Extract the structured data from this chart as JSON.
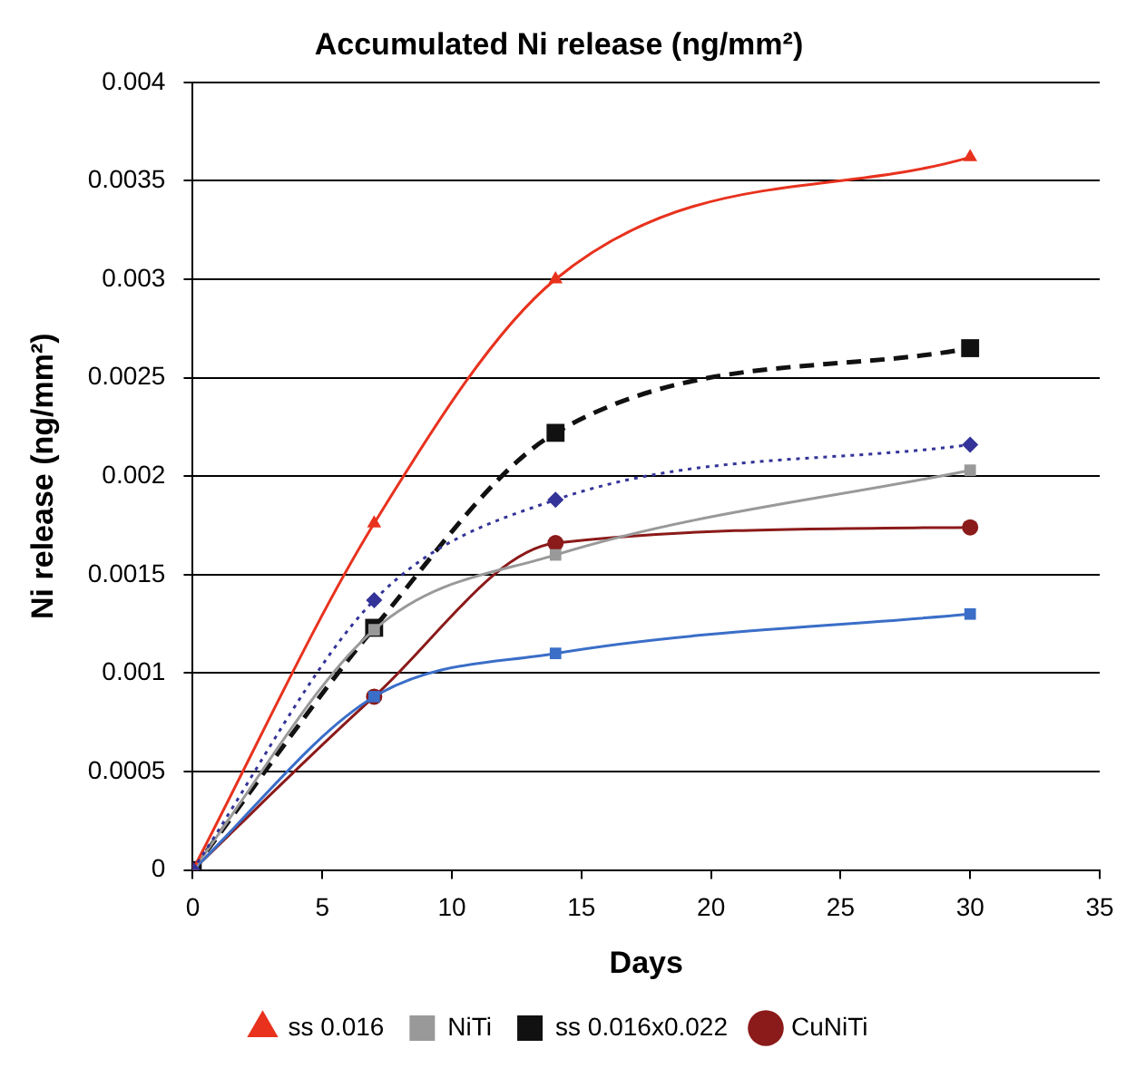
{
  "chart_data": {
    "type": "line",
    "title": "Accumulated Ni release (ng/mm²)",
    "xlabel": "Days",
    "ylabel": "Ni release (ng/mm²)",
    "x": [
      0,
      7,
      14,
      30
    ],
    "series": [
      {
        "color": "#333399",
        "values": [
          0,
          0.00137,
          0.00188,
          0.00216
        ],
        "marker": "diamond",
        "line_style": "dotted"
      },
      {
        "name": "ss 0.016",
        "color": "#e8321e",
        "values": [
          0,
          0.00176,
          0.003,
          0.00362
        ],
        "marker": "triangle",
        "line_style": "solid"
      },
      {
        "name": "NiTi",
        "color": "#999999",
        "values": [
          0,
          0.00122,
          0.0016,
          0.00203
        ],
        "marker": "square",
        "line_style": "solid"
      },
      {
        "color": "#3a6ec8",
        "values": [
          0,
          0.00088,
          0.0011,
          0.0013
        ],
        "marker": "square",
        "line_style": "solid"
      },
      {
        "name": "ss 0.016x0.022",
        "color": "#111111",
        "values": [
          0,
          0.00123,
          0.00222,
          0.00265
        ],
        "marker": "square",
        "line_style": "dashed"
      },
      {
        "name": "CuNiTi",
        "color": "#8b1a1a",
        "values": [
          0,
          0.00088,
          0.00166,
          0.00174
        ],
        "marker": "circle",
        "line_style": "solid"
      }
    ],
    "xlim": [
      0,
      35
    ],
    "xticks": [
      0,
      5,
      10,
      15,
      20,
      25,
      30,
      35
    ],
    "ylim": [
      0,
      0.004
    ],
    "yticks": [
      0,
      0.0005,
      0.001,
      0.0015,
      0.002,
      0.0025,
      0.003,
      0.0035,
      0.004
    ],
    "grid": "y",
    "legend": "bottom"
  }
}
